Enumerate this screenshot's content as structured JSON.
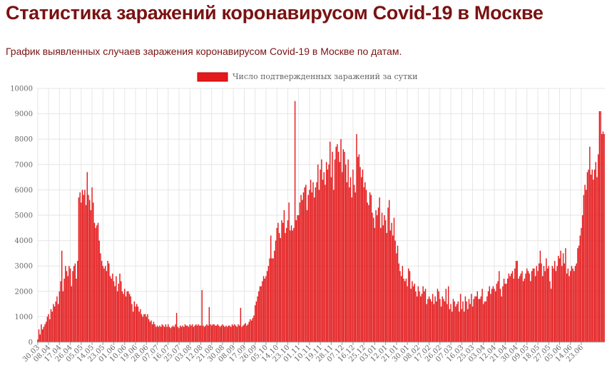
{
  "page": {
    "title": "Статистика заражений коронавирусом Covid-19 в Москве",
    "subtitle": "График выявленных случаев заражения коронавирусом Covid-19 в Москве по датам."
  },
  "chart_data": {
    "type": "bar",
    "legend": {
      "label": "Число подтвержденных заражений за сутки",
      "position": "top-center"
    },
    "ylim": [
      0,
      10000
    ],
    "y_ticks": [
      0,
      1000,
      2000,
      3000,
      4000,
      5000,
      6000,
      7000,
      8000,
      9000,
      10000
    ],
    "x_tick_labels": [
      "30.03",
      "08.04",
      "17.04",
      "26.04",
      "05.05",
      "14.05",
      "23.05",
      "01.06",
      "10.06",
      "19.06",
      "28.06",
      "07.07",
      "16.07",
      "25.07",
      "03.08",
      "12.08",
      "21.08",
      "30.08",
      "08.09",
      "17.09",
      "26.09",
      "05.10",
      "14.10",
      "23.10",
      "01.11",
      "10.11",
      "19.11",
      "28.11",
      "07.12",
      "16.12",
      "25.12",
      "03.01",
      "12.01",
      "21.01",
      "30.01",
      "08.02",
      "17.02",
      "26.02",
      "07.03",
      "16.03",
      "25.03",
      "03.04",
      "12.04",
      "21.04",
      "30.04",
      "09.05",
      "18.05",
      "27.05",
      "05.06",
      "14.06",
      "23.06"
    ],
    "grid": true,
    "colors": {
      "bar": "#e31a1c",
      "bar_stroke": "#c40000",
      "grid": "#e6e6e6"
    },
    "series": [
      {
        "name": "Число подтвержденных заражений за сутки",
        "start_date": "30.03",
        "step_days": 1,
        "values": [
          100,
          500,
          300,
          700,
          500,
          600,
          700,
          800,
          1000,
          1100,
          900,
          1300,
          1200,
          1500,
          1400,
          1600,
          1800,
          1500,
          2000,
          2400,
          3600,
          2000,
          2500,
          3000,
          2800,
          2600,
          3000,
          2900,
          2200,
          2800,
          3000,
          3100,
          2500,
          3200,
          5700,
          5900,
          5500,
          6000,
          5800,
          6000,
          5400,
          6700,
          5800,
          5600,
          5200,
          6100,
          5500,
          4700,
          4500,
          4600,
          4700,
          4000,
          3500,
          3200,
          3000,
          2900,
          3000,
          2800,
          3200,
          3100,
          2600,
          2500,
          2700,
          2400,
          2200,
          2600,
          2000,
          2300,
          2700,
          2400,
          2000,
          1900,
          2100,
          1800,
          2000,
          2000,
          1900,
          1800,
          1500,
          1200,
          1600,
          1400,
          1500,
          1400,
          1200,
          1300,
          1100,
          1000,
          1100,
          1100,
          1000,
          1100,
          900,
          800,
          850,
          700,
          800,
          700,
          600,
          650,
          600,
          650,
          600,
          700,
          650,
          600,
          700,
          600,
          700,
          600,
          550,
          600,
          650,
          600,
          700,
          1150,
          600,
          550,
          650,
          600,
          650,
          600,
          700,
          650,
          650,
          600,
          700,
          650,
          700,
          600,
          650,
          700,
          650,
          700,
          650,
          650,
          2050,
          650,
          600,
          650,
          700,
          650,
          1380,
          700,
          650,
          700,
          700,
          650,
          650,
          700,
          650,
          600,
          650,
          700,
          650,
          600,
          650,
          600,
          650,
          650,
          600,
          700,
          650,
          700,
          650,
          600,
          700,
          650,
          1350,
          600,
          650,
          700,
          750,
          650,
          700,
          800,
          900,
          850,
          950,
          1050,
          1450,
          1600,
          1800,
          2000,
          2200,
          2200,
          2400,
          2600,
          2500,
          2600,
          2800,
          3000,
          3300,
          4200,
          3300,
          3300,
          3600,
          4000,
          4500,
          4700,
          4300,
          4100,
          4800,
          4700,
          5200,
          4300,
          4500,
          4800,
          5500,
          4400,
          4600,
          4400,
          4500,
          9500,
          4800,
          5000,
          5000,
          5500,
          5800,
          5600,
          5900,
          6100,
          6200,
          5200,
          5800,
          6000,
          6400,
          5900,
          6300,
          5700,
          6100,
          6300,
          7000,
          6000,
          6800,
          7200,
          6400,
          6700,
          6200,
          7100,
          6800,
          7000,
          7900,
          6500,
          7500,
          6000,
          7200,
          7700,
          7800,
          7500,
          7100,
          8000,
          6700,
          7600,
          7500,
          7000,
          6300,
          7200,
          6100,
          6500,
          5700,
          6800,
          6200,
          5900,
          8200,
          7300,
          7400,
          6900,
          6500,
          6800,
          6100,
          6300,
          6000,
          5500,
          5400,
          5900,
          5800,
          5100,
          4900,
          4500,
          5200,
          5000,
          5300,
          5700,
          4500,
          5100,
          4600,
          5000,
          4800,
          4300,
          5300,
          5600,
          4400,
          4700,
          4200,
          4900,
          4000,
          3500,
          3800,
          3100,
          2800,
          2600,
          3000,
          2500,
          2400,
          2500,
          2200,
          2900,
          2800,
          2100,
          2400,
          2200,
          2300,
          2000,
          1800,
          2200,
          2000,
          1800,
          1900,
          2200,
          2000,
          2100,
          1500,
          1700,
          1800,
          1700,
          1600,
          1900,
          1500,
          1800,
          1600,
          2100,
          2000,
          1700,
          1400,
          1800,
          1700,
          1600,
          2100,
          1500,
          2200,
          1300,
          1500,
          1200,
          1700,
          1600,
          1400,
          1500,
          1600,
          1200,
          1900,
          1300,
          1600,
          1200,
          1800,
          1600,
          1300,
          1700,
          1500,
          1900,
          1400,
          1700,
          1800,
          1800,
          2000,
          1700,
          1700,
          1800,
          2100,
          1500,
          1600,
          1600,
          1800,
          2000,
          2200,
          1900,
          2100,
          2200,
          2100,
          2000,
          2300,
          2400,
          2800,
          2100,
          1800,
          2200,
          2500,
          2300,
          2300,
          2500,
          2700,
          2600,
          2700,
          2800,
          2500,
          2900,
          3200,
          3200,
          2500,
          2600,
          2700,
          2800,
          2400,
          2500,
          2700,
          2900,
          2800,
          2700,
          2400,
          2800,
          2900,
          2900,
          2600,
          3000,
          2800,
          3100,
          3600,
          3100,
          2600,
          3000,
          2800,
          3300,
          2900,
          3000,
          2400,
          2100,
          3000,
          2900,
          3200,
          2800,
          3000,
          3400,
          3300,
          3600,
          3000,
          3500,
          3100,
          3700,
          2700,
          2900,
          2600,
          2800,
          3000,
          2900,
          2800,
          3000,
          3100,
          3700,
          3800,
          4200,
          4500,
          5000,
          5800,
          6200,
          6000,
          6700,
          6800,
          7700,
          6600,
          6800,
          6400,
          6800,
          7100,
          6500,
          7400,
          9100,
          9100,
          8200,
          8300,
          8200
        ]
      }
    ]
  }
}
